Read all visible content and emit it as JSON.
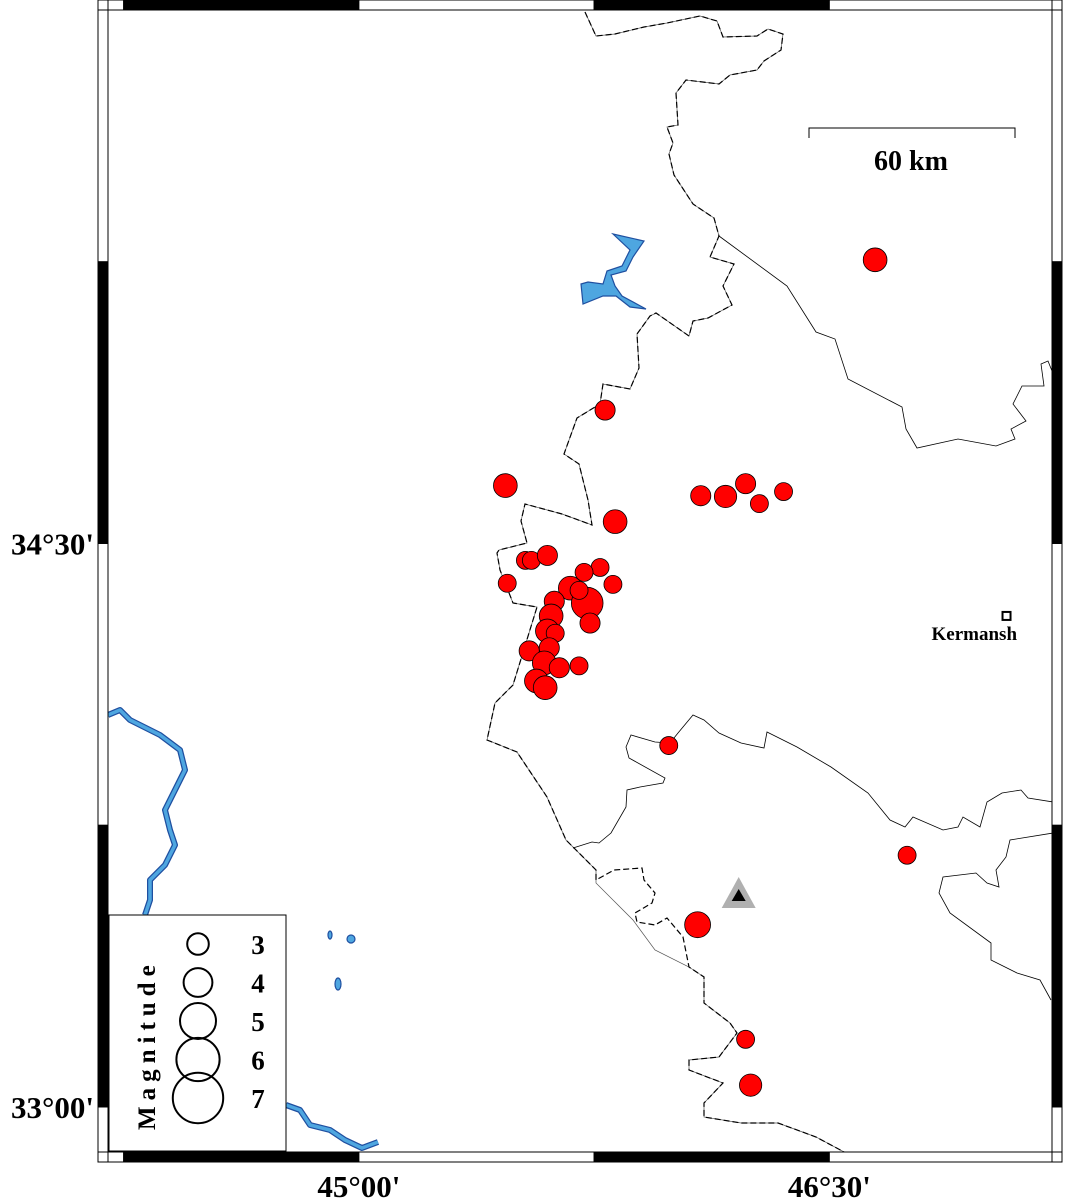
{
  "map": {
    "region": {
      "lon_min": 44.2,
      "lon_max": 47.21,
      "lat_min": 32.88,
      "lat_max": 35.92
    },
    "frame_tick_interval_deg": 0.75,
    "x_ticks": [
      {
        "lon": 45.0,
        "label": "45°00'"
      },
      {
        "lon": 46.5,
        "label": "46°30'"
      }
    ],
    "y_ticks": [
      {
        "lat": 34.5,
        "label": "34°30'"
      },
      {
        "lat": 33.0,
        "label": "33°00'"
      }
    ],
    "colors": {
      "event_fill": "#ff0000",
      "water": "#4ea6e0",
      "water_outline": "#1f4fa0",
      "station_halo": "#b0b0b0",
      "station": "#000000"
    },
    "scale_bar": {
      "label": "60 km"
    },
    "city": {
      "name": "Kermansh",
      "lon": 47.065,
      "lat": 34.307,
      "symbol": "square"
    },
    "station": {
      "lon": 46.211,
      "lat": 33.564,
      "symbol": "triangle"
    },
    "events": [
      {
        "lon": 46.646,
        "lat": 35.255,
        "mag": 3.3
      },
      {
        "lon": 45.785,
        "lat": 34.855,
        "mag": 2.8
      },
      {
        "lon": 45.467,
        "lat": 34.654,
        "mag": 3.3
      },
      {
        "lon": 45.817,
        "lat": 34.558,
        "mag": 3.3
      },
      {
        "lon": 46.09,
        "lat": 34.627,
        "mag": 2.8
      },
      {
        "lon": 46.169,
        "lat": 34.625,
        "mag": 3.1
      },
      {
        "lon": 46.233,
        "lat": 34.659,
        "mag": 2.8
      },
      {
        "lon": 46.277,
        "lat": 34.606,
        "mag": 2.5
      },
      {
        "lon": 46.354,
        "lat": 34.638,
        "mag": 2.5
      },
      {
        "lon": 45.531,
        "lat": 34.455,
        "mag": 2.5
      },
      {
        "lon": 45.55,
        "lat": 34.455,
        "mag": 2.5
      },
      {
        "lon": 45.601,
        "lat": 34.468,
        "mag": 2.8
      },
      {
        "lon": 45.473,
        "lat": 34.394,
        "mag": 2.5
      },
      {
        "lon": 45.769,
        "lat": 34.436,
        "mag": 2.5
      },
      {
        "lon": 45.81,
        "lat": 34.391,
        "mag": 2.5
      },
      {
        "lon": 45.718,
        "lat": 34.423,
        "mag": 2.5
      },
      {
        "lon": 45.674,
        "lat": 34.381,
        "mag": 3.3
      },
      {
        "lon": 45.728,
        "lat": 34.341,
        "mag": 4.4
      },
      {
        "lon": 45.623,
        "lat": 34.346,
        "mag": 2.8
      },
      {
        "lon": 45.613,
        "lat": 34.307,
        "mag": 3.3
      },
      {
        "lon": 45.702,
        "lat": 34.375,
        "mag": 2.5
      },
      {
        "lon": 45.737,
        "lat": 34.288,
        "mag": 2.8
      },
      {
        "lon": 45.601,
        "lat": 34.267,
        "mag": 3.3
      },
      {
        "lon": 45.626,
        "lat": 34.261,
        "mag": 2.5
      },
      {
        "lon": 45.543,
        "lat": 34.214,
        "mag": 2.8
      },
      {
        "lon": 45.607,
        "lat": 34.222,
        "mag": 2.8
      },
      {
        "lon": 45.591,
        "lat": 34.182,
        "mag": 3.3
      },
      {
        "lon": 45.639,
        "lat": 34.169,
        "mag": 2.8
      },
      {
        "lon": 45.702,
        "lat": 34.174,
        "mag": 2.5
      },
      {
        "lon": 45.566,
        "lat": 34.134,
        "mag": 3.3
      },
      {
        "lon": 45.594,
        "lat": 34.116,
        "mag": 3.3
      },
      {
        "lon": 45.988,
        "lat": 33.962,
        "mag": 2.5
      },
      {
        "lon": 46.748,
        "lat": 33.67,
        "mag": 2.5
      },
      {
        "lon": 46.08,
        "lat": 33.485,
        "mag": 3.6
      },
      {
        "lon": 46.233,
        "lat": 33.18,
        "mag": 2.5
      },
      {
        "lon": 46.249,
        "lat": 33.058,
        "mag": 3.1
      }
    ]
  },
  "legend": {
    "title": "Magnitude",
    "entries": [
      {
        "mag": 3,
        "label": "3"
      },
      {
        "mag": 4,
        "label": "4"
      },
      {
        "mag": 5,
        "label": "5"
      },
      {
        "mag": 6,
        "label": "6"
      },
      {
        "mag": 7,
        "label": "7"
      }
    ]
  }
}
